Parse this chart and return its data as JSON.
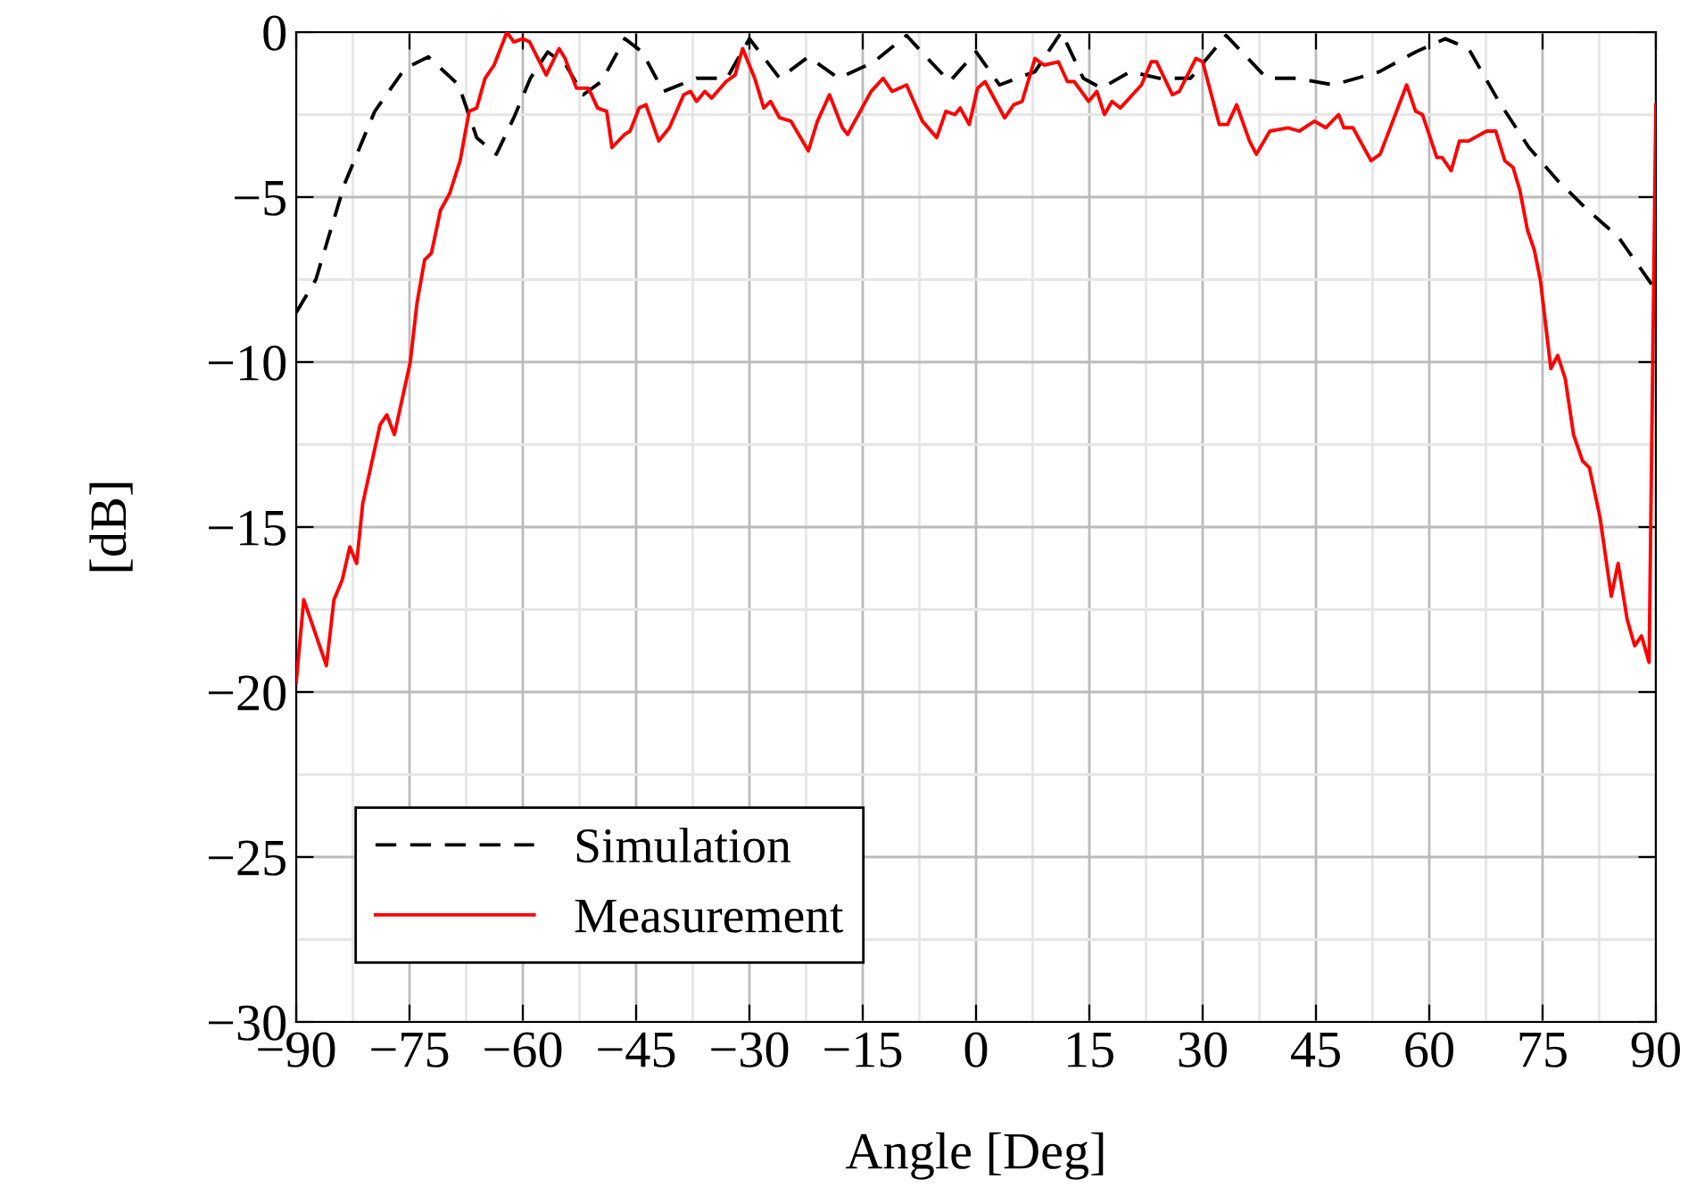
{
  "chart_data": {
    "type": "line",
    "xlabel": "Angle [Deg]",
    "ylabel": "[dB]",
    "xlim": [
      -90,
      90
    ],
    "ylim": [
      -30,
      0
    ],
    "xticks": [
      -90,
      -75,
      -60,
      -45,
      -30,
      -15,
      0,
      15,
      30,
      45,
      60,
      75,
      90
    ],
    "yticks": [
      -30,
      -25,
      -20,
      -15,
      -10,
      -5,
      0
    ],
    "grid": true,
    "legend": "bottom left",
    "marker": "none",
    "series": [
      {
        "name": "Simulation",
        "color": "#000000",
        "line_style": "dashed",
        "x": [
          -90,
          -87.4,
          -83.6,
          -79.6,
          -75.6,
          -72.5,
          -68.5,
          -66.1,
          -63.5,
          -61.2,
          -59,
          -56.7,
          -54.3,
          -52,
          -49.6,
          -46.5,
          -44.2,
          -41.4,
          -37,
          -33,
          -30,
          -26,
          -22.2,
          -18.2,
          -13.5,
          -9.2,
          -6.4,
          -3.5,
          0,
          3.1,
          7.8,
          11.3,
          14.2,
          16.6,
          20.4,
          24.3,
          28.4,
          33.1,
          38.5,
          42.5,
          47.3,
          53.4,
          58.2,
          62.1,
          65.2,
          69.2,
          73.2,
          77,
          81,
          85,
          89.3,
          90
        ],
        "values": [
          -8.5,
          -7.5,
          -4.6,
          -2.4,
          -1.1,
          -0.75,
          -1.6,
          -3.2,
          -3.7,
          -2.6,
          -1.4,
          -0.6,
          -1.0,
          -1.9,
          -1.5,
          -0.2,
          -0.6,
          -1.8,
          -1.4,
          -1.4,
          -0.2,
          -1.4,
          -0.75,
          -1.4,
          -0.9,
          -0.1,
          -0.8,
          -1.5,
          -0.6,
          -1.6,
          -1.2,
          0,
          -1.4,
          -1.7,
          -1.2,
          -1.4,
          -1.4,
          -0.1,
          -1.4,
          -1.4,
          -1.6,
          -1.2,
          -0.6,
          -0.2,
          -0.5,
          -2.1,
          -3.5,
          -4.5,
          -5.4,
          -6.2,
          -7.6,
          -7.8
        ]
      },
      {
        "name": "Measurement",
        "color": "#ff0000",
        "line_style": "solid",
        "x": [
          -90,
          -89,
          -86,
          -85,
          -83.9,
          -82.9,
          -82,
          -81.2,
          -78.9,
          -78,
          -77,
          -74.9,
          -74,
          -73,
          -72.1,
          -70.9,
          -69.7,
          -68.3,
          -67.1,
          -66.1,
          -65,
          -63.8,
          -62.1,
          -61.2,
          -60,
          -59.1,
          -56.9,
          -55.2,
          -54.4,
          -52.9,
          -51.3,
          -50.1,
          -48.9,
          -48.2,
          -46.5,
          -45.8,
          -44.6,
          -43.7,
          -42,
          -40.6,
          -38.7,
          -37.8,
          -37,
          -35.9,
          -35,
          -33.1,
          -31.9,
          -30.9,
          -29.3,
          -28.1,
          -27.2,
          -26,
          -24.5,
          -22.2,
          -21,
          -19.4,
          -17.7,
          -17,
          -13.9,
          -12.3,
          -11.1,
          -9.2,
          -7.1,
          -5.2,
          -4,
          -2.8,
          -2.1,
          -0.9,
          0.2,
          1.2,
          3.8,
          5,
          6.1,
          7.8,
          9,
          10.9,
          12.1,
          13,
          14.9,
          16,
          17,
          18,
          19.1,
          21.9,
          23.2,
          23.9,
          26,
          26.9,
          29.1,
          30,
          32.2,
          33.3,
          34.5,
          36.2,
          37.1,
          38.9,
          41.3,
          42.8,
          44.8,
          46.3,
          48,
          48.7,
          49.9,
          52.3,
          53.5,
          57,
          58.2,
          59.1,
          61,
          61.7,
          62.9,
          64,
          65.2,
          67.6,
          68.8,
          70,
          71.1,
          72,
          73,
          73.9,
          74.7,
          76.1,
          77,
          78,
          79.1,
          80.3,
          81.2,
          82.6,
          84.1,
          85,
          86.2,
          87.2,
          88.1,
          89.1,
          90
        ],
        "values": [
          -19.7,
          -17.2,
          -19.2,
          -17.2,
          -16.6,
          -15.6,
          -16.1,
          -14.3,
          -11.9,
          -11.6,
          -12.2,
          -10.0,
          -8.2,
          -6.9,
          -6.7,
          -5.4,
          -4.9,
          -3.9,
          -2.4,
          -2.3,
          -1.4,
          -1.0,
          0,
          -0.3,
          -0.2,
          -0.3,
          -1.3,
          -0.5,
          -0.8,
          -1.7,
          -1.7,
          -2.3,
          -2.4,
          -3.5,
          -3.1,
          -3.0,
          -2.3,
          -2.2,
          -3.3,
          -2.9,
          -1.9,
          -1.8,
          -2.1,
          -1.8,
          -2.0,
          -1.5,
          -1.3,
          -0.5,
          -1.4,
          -2.3,
          -2.1,
          -2.6,
          -2.7,
          -3.6,
          -2.7,
          -1.9,
          -2.9,
          -3.1,
          -1.8,
          -1.4,
          -1.8,
          -1.6,
          -2.7,
          -3.2,
          -2.4,
          -2.5,
          -2.3,
          -2.8,
          -1.7,
          -1.5,
          -2.6,
          -2.2,
          -2.1,
          -0.8,
          -1.0,
          -0.9,
          -1.5,
          -1.5,
          -2.1,
          -1.8,
          -2.5,
          -2.1,
          -2.3,
          -1.6,
          -0.9,
          -0.9,
          -1.9,
          -1.8,
          -0.8,
          -0.9,
          -2.8,
          -2.8,
          -2.2,
          -3.3,
          -3.7,
          -3.0,
          -2.9,
          -3.0,
          -2.7,
          -2.9,
          -2.5,
          -2.9,
          -2.9,
          -3.9,
          -3.7,
          -1.6,
          -2.4,
          -2.5,
          -3.8,
          -3.8,
          -4.2,
          -3.3,
          -3.3,
          -3.0,
          -3.0,
          -3.9,
          -4.1,
          -4.8,
          -6.0,
          -6.6,
          -7.5,
          -10.2,
          -9.8,
          -10.5,
          -12.2,
          -13.0,
          -13.2,
          -14.7,
          -17.1,
          -16.1,
          -17.8,
          -18.6,
          -18.3,
          -19.1,
          -2.2
        ]
      }
    ]
  }
}
